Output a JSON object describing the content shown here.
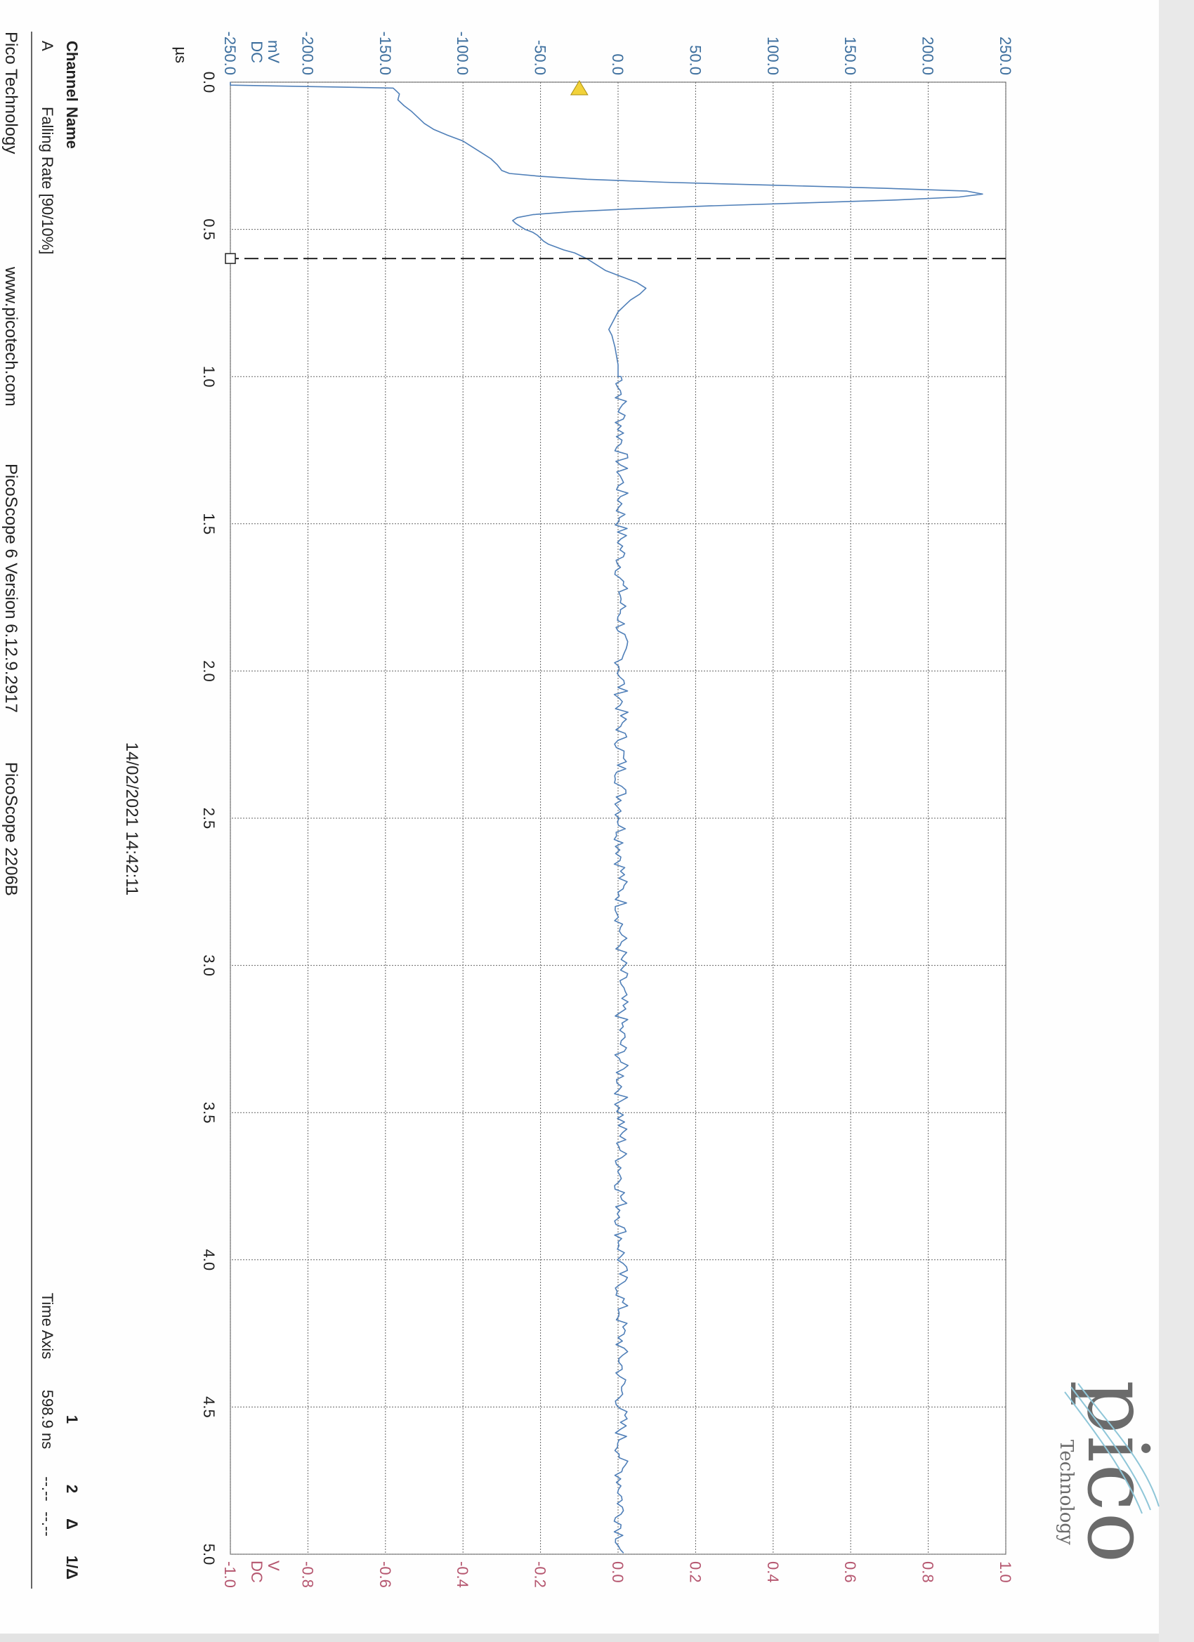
{
  "header": {
    "logo_text": "pico",
    "logo_subtext": "Technology"
  },
  "footer": {
    "company": "Pico Technology",
    "website": "www.picotech.com",
    "software": "PicoScope 6 Version 6.12.9.2917",
    "device": "PicoScope 2206B"
  },
  "timestamp": "14/02/2021 14:42:11",
  "channel_table": {
    "headers": [
      "Channel",
      "Name"
    ],
    "rows": [
      [
        "A",
        "Falling Rate [90/10%]"
      ]
    ]
  },
  "ruler_table": {
    "headers": [
      "1",
      "2",
      "Δ",
      "1/Δ"
    ],
    "row_label": "Time Axis",
    "values": [
      "598.9 ns",
      "--.--",
      "--.--",
      ""
    ]
  },
  "colors": {
    "trace": "#4f7fb8",
    "left_axis": "#3d6f9e",
    "right_axis": "#b5566f",
    "grid": "#555555",
    "trigger_marker": "#f2d23a"
  },
  "chart_data": {
    "type": "line",
    "xlabel": "µs",
    "xlim": [
      0.0,
      5.0
    ],
    "x_ticks": [
      "0.0",
      "0.5",
      "1.0",
      "1.5",
      "2.0",
      "2.5",
      "3.0",
      "3.5",
      "4.0",
      "4.5",
      "5.0"
    ],
    "ylabel_left": [
      "mV",
      "DC"
    ],
    "ylim_left": [
      -250.0,
      250.0
    ],
    "y_ticks_left": [
      "-250.0",
      "-200.0",
      "-150.0",
      "-100.0",
      "-50.0",
      "0.0",
      "50.0",
      "100.0",
      "150.0",
      "200.0",
      "250.0"
    ],
    "ylabel_right": [
      "V",
      "DC"
    ],
    "ylim_right": [
      -1.0,
      1.0
    ],
    "y_ticks_right": [
      "-1.0",
      "-0.8",
      "-0.6",
      "-0.4",
      "-0.2",
      "0.0",
      "0.2",
      "0.4",
      "0.6",
      "0.8",
      "1.0"
    ],
    "grid": true,
    "trigger_level_mv": -25,
    "ruler_time_us": 0.599,
    "series": [
      {
        "channel": "A",
        "x": [
          0.0,
          0.01,
          0.02,
          0.03,
          0.04,
          0.06,
          0.08,
          0.1,
          0.12,
          0.14,
          0.16,
          0.18,
          0.2,
          0.22,
          0.24,
          0.26,
          0.28,
          0.3,
          0.31,
          0.32,
          0.33,
          0.34,
          0.35,
          0.36,
          0.37,
          0.38,
          0.39,
          0.4,
          0.41,
          0.42,
          0.43,
          0.44,
          0.45,
          0.46,
          0.47,
          0.48,
          0.49,
          0.5,
          0.51,
          0.52,
          0.53,
          0.54,
          0.55,
          0.56,
          0.57,
          0.58,
          0.6,
          0.62,
          0.64,
          0.66,
          0.68,
          0.7,
          0.72,
          0.74,
          0.76,
          0.78,
          0.8,
          0.82,
          0.84,
          0.86,
          0.88,
          0.9,
          0.93,
          0.96,
          1.0
        ],
        "y": [
          -250,
          -250,
          -145,
          -143,
          -141,
          -142,
          -138,
          -133,
          -129,
          -125,
          -119,
          -110,
          -100,
          -94,
          -88,
          -82,
          -78,
          -75,
          -70,
          -50,
          -20,
          30,
          100,
          170,
          225,
          235,
          220,
          180,
          120,
          60,
          10,
          -30,
          -55,
          -65,
          -68,
          -66,
          -63,
          -60,
          -55,
          -52,
          -50,
          -48,
          -45,
          -40,
          -35,
          -28,
          -20,
          -14,
          -8,
          2,
          12,
          18,
          14,
          8,
          4,
          0,
          -2,
          -4,
          -6,
          -4,
          -3,
          -2,
          -1,
          0,
          0
        ]
      }
    ]
  }
}
